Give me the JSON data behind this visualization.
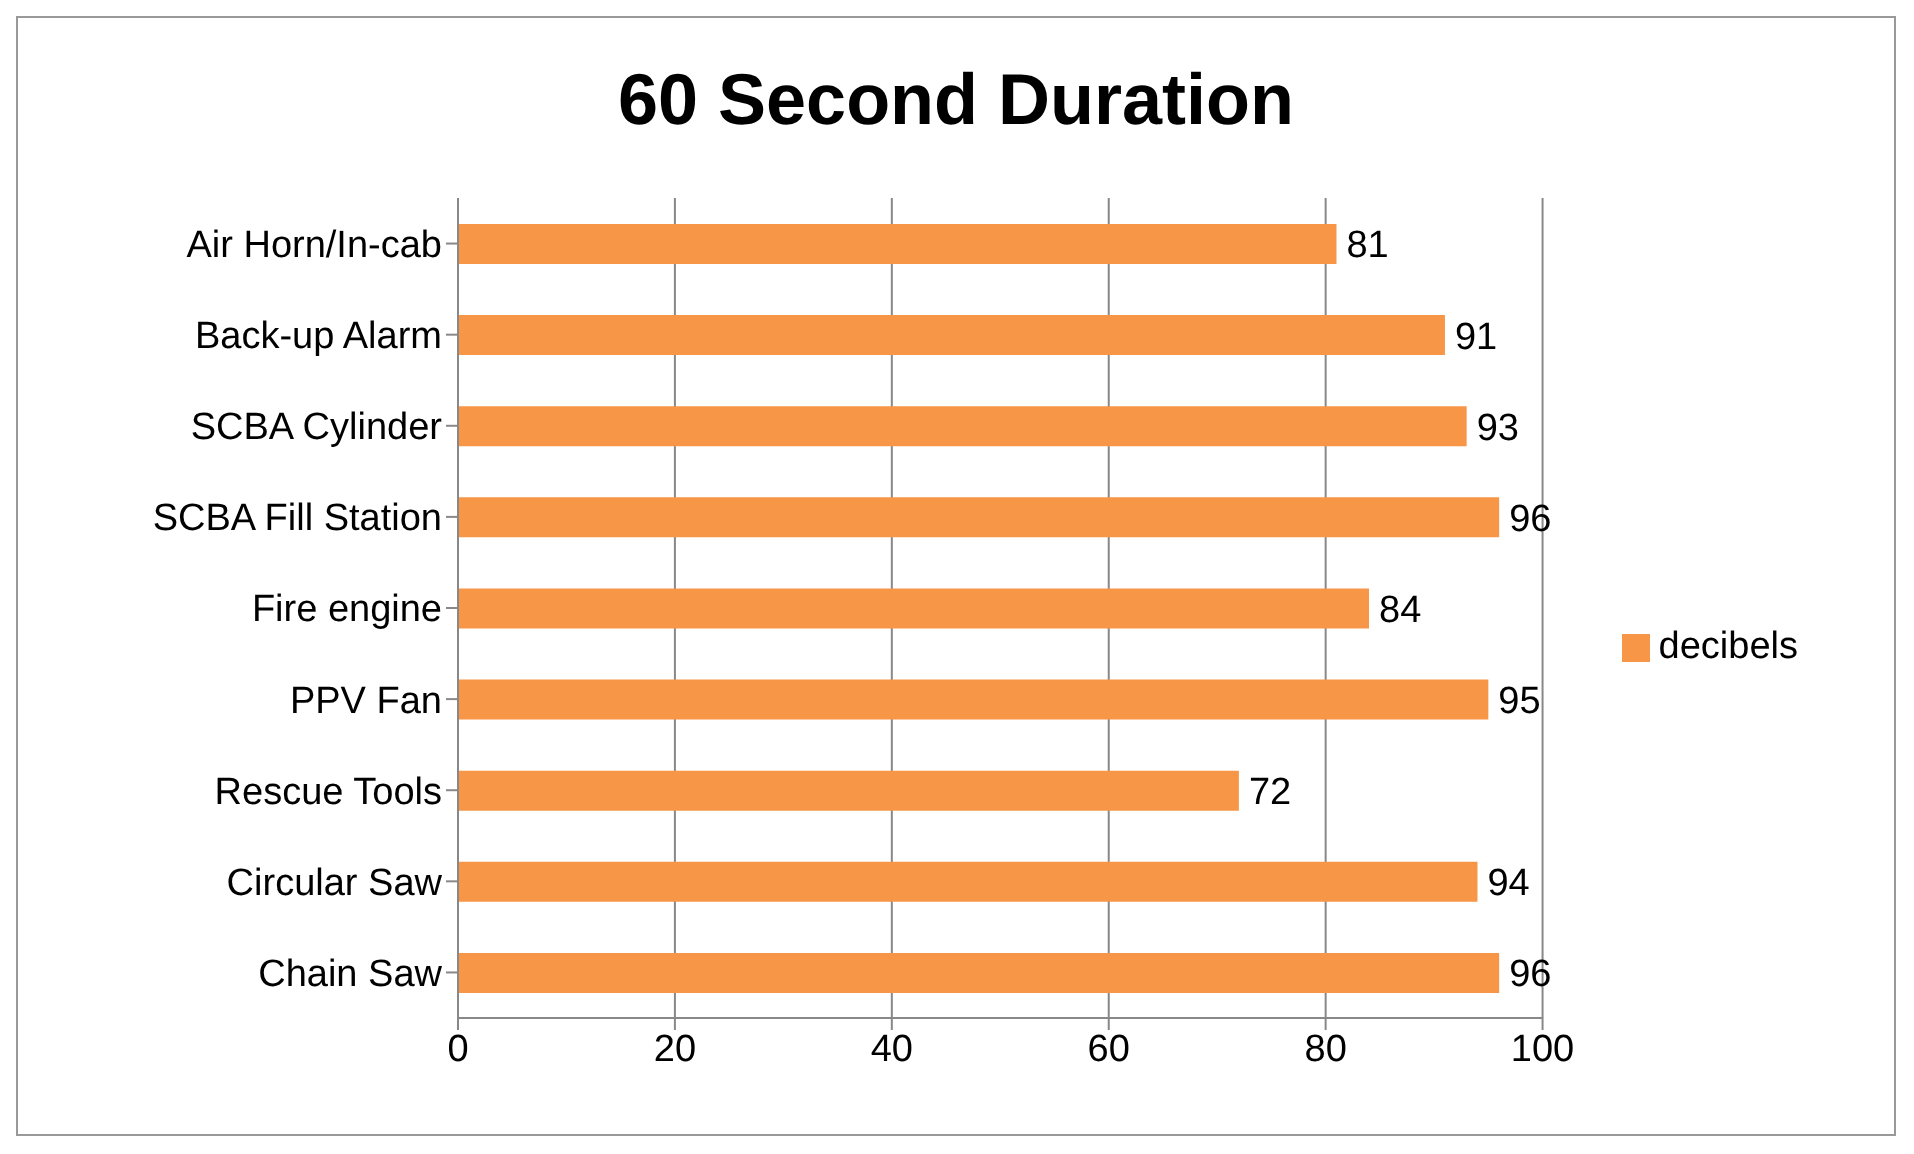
{
  "chart_data": {
    "type": "bar",
    "orientation": "horizontal",
    "title": "60 Second Duration",
    "categories": [
      "Air Horn/In-cab",
      "Back-up Alarm",
      "SCBA Cylinder",
      "SCBA Fill Station",
      "Fire engine",
      "PPV Fan",
      "Rescue Tools",
      "Circular Saw",
      "Chain Saw"
    ],
    "series": [
      {
        "name": "decibels",
        "color": "#f79646",
        "values": [
          81,
          91,
          93,
          96,
          84,
          95,
          72,
          94,
          96
        ]
      }
    ],
    "xlim": [
      0,
      100
    ],
    "xticks": [
      0,
      20,
      40,
      60,
      80,
      100
    ],
    "grid": "x",
    "legend": "right",
    "data_labels": true
  }
}
